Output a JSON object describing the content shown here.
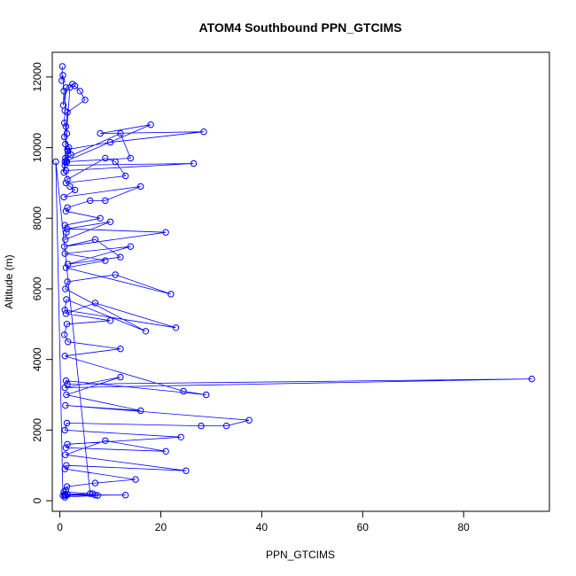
{
  "chart_data": {
    "type": "line",
    "title": "ATOM4 Southbound PPN_GTCIMS",
    "xlabel": "PPN_GTCIMS",
    "ylabel": "Altitude (m)",
    "xlim": [
      -1.5,
      97
    ],
    "ylim": [
      -300,
      12700
    ],
    "xticks": [
      0,
      20,
      40,
      60,
      80
    ],
    "yticks": [
      0,
      2000,
      4000,
      6000,
      8000,
      10000,
      12000
    ],
    "grid": false,
    "legend": "none",
    "line_color": "#0000ff",
    "marker": "open-circle",
    "series": [
      {
        "x": [
          0.5,
          0.4,
          0.6,
          0.8,
          0.7,
          1.2,
          1.0,
          0.9,
          1.4,
          1.1,
          1.6,
          1.3,
          0.8,
          2.0,
          2.5,
          3.0,
          4.0,
          5.0,
          1.5,
          1.2,
          0.9,
          1.8,
          2.2,
          1.0,
          18.0,
          8.0,
          28.5,
          10.0,
          1.5,
          1.1,
          12.0,
          14.0,
          1.4,
          1.0,
          26.5,
          1.2,
          1.5,
          9.0,
          11.0,
          13.0,
          1.2,
          2.0,
          3.0,
          0.8,
          16.0,
          9.0,
          6.0,
          1.5,
          1.2,
          8.0,
          1.0,
          1.3,
          1.1,
          10.0,
          1.4,
          21.0,
          0.9,
          7.0,
          12.0,
          1.6,
          14.0,
          1.0,
          9.0,
          1.2,
          22.0,
          11.0,
          1.5,
          1.1,
          17.0,
          1.3,
          1.0,
          23.0,
          7.0,
          1.2,
          10.0,
          1.4,
          0.9,
          1.6,
          12.0,
          1.0,
          24.5,
          29.0,
          1.2,
          1.5,
          93.5,
          1.0,
          12.0,
          1.3,
          16.0,
          1.1,
          37.5,
          33.0,
          28.0,
          1.4,
          1.0,
          24.0,
          1.5,
          1.2,
          21.0,
          9.0,
          1.1,
          25.0,
          1.3,
          1.0,
          15.0,
          7.0,
          1.4,
          1.2,
          0.8,
          6.5,
          7.5,
          1.0,
          1.5,
          7.0,
          1.2,
          0.9,
          13.0,
          1.1,
          0.6,
          -0.8,
          6.0,
          1.0
        ],
        "y": [
          12300,
          11900,
          12050,
          11600,
          11200,
          11700,
          11050,
          10700,
          10400,
          10100,
          9900,
          9600,
          9300,
          11700,
          11800,
          11750,
          11600,
          11350,
          11000,
          10600,
          10300,
          10000,
          9800,
          9600,
          10650,
          10400,
          10450,
          10150,
          9950,
          9700,
          10400,
          9700,
          9600,
          9500,
          9550,
          9350,
          9100,
          9700,
          9600,
          9200,
          9000,
          8900,
          8800,
          8600,
          8900,
          8500,
          8500,
          8300,
          8200,
          8000,
          7800,
          7600,
          7400,
          7900,
          7700,
          7600,
          7200,
          7400,
          6900,
          6700,
          7200,
          7000,
          6800,
          6600,
          5850,
          6400,
          6200,
          6000,
          4800,
          5700,
          5400,
          4900,
          5600,
          5300,
          5100,
          5000,
          4700,
          4500,
          4300,
          4100,
          3100,
          3000,
          3400,
          3300,
          3450,
          3200,
          3500,
          3000,
          2550,
          2700,
          2280,
          2120,
          2120,
          2200,
          2000,
          1800,
          1600,
          1500,
          1400,
          1700,
          1300,
          850,
          1000,
          900,
          600,
          500,
          400,
          300,
          250,
          200,
          150,
          100,
          180,
          160,
          150,
          170,
          160,
          150,
          150,
          9600,
          200,
          180
        ]
      }
    ]
  }
}
